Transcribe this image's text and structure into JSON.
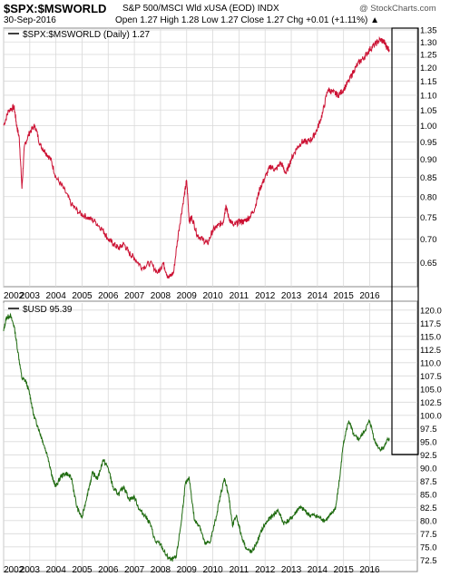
{
  "header": {
    "symbol": "$SPX:$MSWORLD",
    "description": "S&P 500/MSCI Wld xUSA (EOD) INDX",
    "date": "30-Sep-2016",
    "ohlc": "Open 1.27  High 1.28  Low 1.27  Close 1.27  Chg +0.01 (+1.11%) ▲",
    "credit": "@ StockCharts.com"
  },
  "colors": {
    "upper_series": "#cc1133",
    "lower_series": "#1f6b10",
    "grid": "#d9d9d9"
  },
  "chart_data": [
    {
      "type": "line",
      "legend": "$SPX:$MSWORLD (Daily) 1.27",
      "yscale": "log",
      "ylim": [
        0.61,
        1.35
      ],
      "xlim": [
        2002.0,
        2016.85
      ],
      "y_ticks": [
        "1.35",
        "1.30",
        "1.25",
        "1.20",
        "1.15",
        "1.10",
        "1.05",
        "1.00",
        "0.95",
        "0.90",
        "0.85",
        "0.80",
        "0.75",
        "0.70",
        "0.65"
      ],
      "x_ticks": [
        "2002",
        "2003",
        "2004",
        "2005",
        "2006",
        "2007",
        "2008",
        "2009",
        "2010",
        "2011",
        "2012",
        "2013",
        "2014",
        "2015",
        "2016"
      ],
      "x": [
        2002.0,
        2002.2,
        2002.4,
        2002.5,
        2002.6,
        2002.7,
        2002.8,
        2003.0,
        2003.2,
        2003.4,
        2003.6,
        2003.8,
        2004.0,
        2004.3,
        2004.6,
        2004.9,
        2005.2,
        2005.5,
        2005.8,
        2006.0,
        2006.2,
        2006.4,
        2006.6,
        2006.8,
        2007.0,
        2007.3,
        2007.6,
        2007.9,
        2008.1,
        2008.3,
        2008.5,
        2008.7,
        2008.9,
        2009.0,
        2009.1,
        2009.2,
        2009.4,
        2009.6,
        2009.8,
        2010.0,
        2010.2,
        2010.4,
        2010.5,
        2010.6,
        2010.8,
        2011.0,
        2011.2,
        2011.4,
        2011.6,
        2011.8,
        2012.0,
        2012.2,
        2012.4,
        2012.6,
        2012.8,
        2013.0,
        2013.2,
        2013.4,
        2013.6,
        2013.8,
        2014.0,
        2014.2,
        2014.4,
        2014.6,
        2014.8,
        2015.0,
        2015.2,
        2015.4,
        2015.6,
        2015.8,
        2016.0,
        2016.2,
        2016.4,
        2016.55,
        2016.65,
        2016.75
      ],
      "y": [
        1.0,
        1.05,
        1.06,
        1.0,
        0.96,
        0.82,
        0.94,
        0.98,
        1.0,
        0.94,
        0.92,
        0.9,
        0.85,
        0.82,
        0.78,
        0.76,
        0.75,
        0.74,
        0.72,
        0.7,
        0.69,
        0.68,
        0.69,
        0.67,
        0.66,
        0.64,
        0.65,
        0.63,
        0.65,
        0.62,
        0.63,
        0.72,
        0.8,
        0.84,
        0.74,
        0.75,
        0.71,
        0.7,
        0.69,
        0.72,
        0.73,
        0.74,
        0.78,
        0.75,
        0.73,
        0.74,
        0.74,
        0.75,
        0.77,
        0.82,
        0.85,
        0.88,
        0.87,
        0.89,
        0.86,
        0.9,
        0.93,
        0.95,
        0.95,
        0.96,
        0.99,
        1.04,
        1.12,
        1.11,
        1.1,
        1.12,
        1.15,
        1.19,
        1.22,
        1.24,
        1.27,
        1.29,
        1.31,
        1.3,
        1.28,
        1.27
      ]
    },
    {
      "type": "line",
      "legend": "$USD 95.39",
      "yscale": "linear",
      "ylim": [
        71.0,
        121.0
      ],
      "xlim": [
        2002.0,
        2016.85
      ],
      "y_ticks": [
        "120.0",
        "117.5",
        "115.0",
        "112.5",
        "110.0",
        "107.5",
        "105.0",
        "102.5",
        "100.0",
        "97.5",
        "95.0",
        "92.5",
        "90.0",
        "87.5",
        "85.0",
        "82.5",
        "80.0",
        "77.5",
        "75.0",
        "72.5"
      ],
      "x_ticks": [
        "2002",
        "2003",
        "2004",
        "2005",
        "2006",
        "2007",
        "2008",
        "2009",
        "2010",
        "2011",
        "2012",
        "2013",
        "2014",
        "2015",
        "2016"
      ],
      "x": [
        2002.0,
        2002.1,
        2002.25,
        2002.4,
        2002.55,
        2002.7,
        2002.85,
        2003.0,
        2003.15,
        2003.3,
        2003.5,
        2003.7,
        2003.9,
        2004.0,
        2004.2,
        2004.4,
        2004.6,
        2004.8,
        2005.0,
        2005.2,
        2005.4,
        2005.6,
        2005.8,
        2006.0,
        2006.2,
        2006.4,
        2006.6,
        2006.8,
        2007.0,
        2007.2,
        2007.4,
        2007.6,
        2007.8,
        2008.0,
        2008.2,
        2008.4,
        2008.6,
        2008.8,
        2008.95,
        2009.1,
        2009.3,
        2009.5,
        2009.7,
        2009.9,
        2010.1,
        2010.3,
        2010.45,
        2010.6,
        2010.75,
        2010.9,
        2011.1,
        2011.3,
        2011.5,
        2011.7,
        2011.9,
        2012.1,
        2012.3,
        2012.5,
        2012.7,
        2012.9,
        2013.1,
        2013.3,
        2013.5,
        2013.7,
        2013.9,
        2014.1,
        2014.3,
        2014.5,
        2014.7,
        2014.85,
        2015.0,
        2015.2,
        2015.4,
        2015.6,
        2015.8,
        2016.0,
        2016.2,
        2016.4,
        2016.55,
        2016.7,
        2016.75
      ],
      "y": [
        116.0,
        118.5,
        119.0,
        117.0,
        112.0,
        107.0,
        106.5,
        104.0,
        100.0,
        98.0,
        95.0,
        92.0,
        87.5,
        86.5,
        88.5,
        89.0,
        88.0,
        82.5,
        80.5,
        85.0,
        89.0,
        88.0,
        91.5,
        90.0,
        86.0,
        85.0,
        86.5,
        84.0,
        84.5,
        82.0,
        81.0,
        79.5,
        76.0,
        75.5,
        73.5,
        72.5,
        73.0,
        80.0,
        87.0,
        88.0,
        80.0,
        79.0,
        75.5,
        76.0,
        80.0,
        85.0,
        88.0,
        85.0,
        79.0,
        81.0,
        77.0,
        74.5,
        74.0,
        76.0,
        78.5,
        80.0,
        81.0,
        82.0,
        79.5,
        80.0,
        81.0,
        82.5,
        82.0,
        81.0,
        81.0,
        80.5,
        80.0,
        81.0,
        82.5,
        88.0,
        95.0,
        99.0,
        96.0,
        95.5,
        97.0,
        99.0,
        95.0,
        93.5,
        94.0,
        95.5,
        95.4
      ]
    }
  ]
}
